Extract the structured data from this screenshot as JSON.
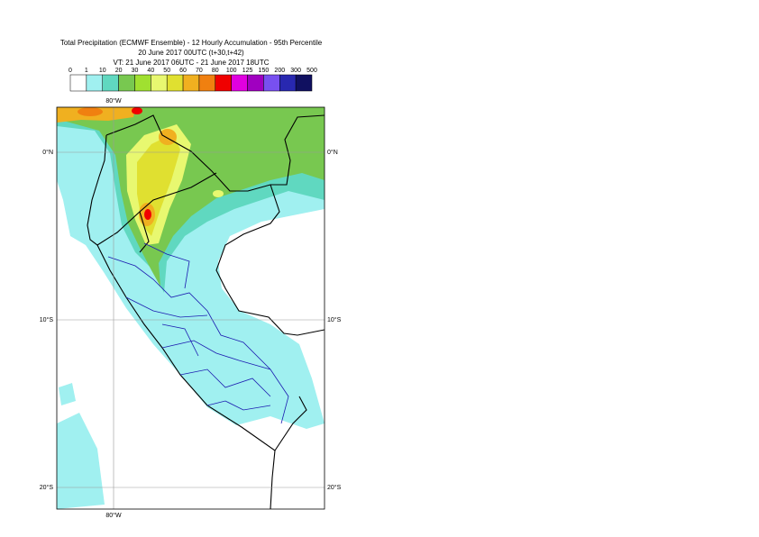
{
  "header": {
    "title": "Total Precipitation (ECMWF Ensemble) - 12 Hourly Accumulation - 95th Percentile",
    "run": "20 June 2017 00UTC (t+30,t+42)",
    "valid": "VT: 21 June 2017 06UTC - 21 June 2017 18UTC"
  },
  "legend": {
    "labels": [
      0,
      1,
      10,
      20,
      30,
      40,
      50,
      60,
      70,
      80,
      100,
      125,
      150,
      200,
      300,
      500
    ],
    "colors": [
      "#ffffff",
      "#a0f0f0",
      "#60d8c0",
      "#78c850",
      "#a0e030",
      "#e8f870",
      "#e0e030",
      "#f0b020",
      "#f08010",
      "#f00000",
      "#e000e0",
      "#a000c0",
      "#7850f0",
      "#2828b0",
      "#101060"
    ]
  },
  "map": {
    "top_label": "80°W",
    "bottom_label": "80°W",
    "left_labels": [
      "0°N",
      "10°S",
      "20°S"
    ],
    "right_labels": [
      "0°N",
      "10°S",
      "20°S"
    ]
  }
}
